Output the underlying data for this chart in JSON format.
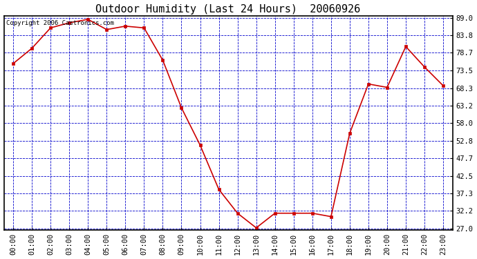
{
  "title": "Outdoor Humidity (Last 24 Hours)  20060926",
  "copyright_text": "Copyright 2006 Castronics.com",
  "x_labels": [
    "00:00",
    "01:00",
    "02:00",
    "03:00",
    "04:00",
    "05:00",
    "06:00",
    "07:00",
    "08:00",
    "09:00",
    "10:00",
    "11:00",
    "12:00",
    "13:00",
    "14:00",
    "15:00",
    "16:00",
    "17:00",
    "18:00",
    "19:00",
    "20:00",
    "21:00",
    "22:00",
    "23:00"
  ],
  "y_values": [
    75.5,
    80.0,
    86.0,
    87.5,
    88.5,
    85.5,
    86.5,
    86.0,
    76.5,
    62.5,
    51.5,
    38.5,
    31.5,
    27.2,
    31.5,
    31.5,
    31.5,
    30.5,
    55.0,
    69.5,
    68.5,
    80.5,
    74.5,
    69.0
  ],
  "line_color": "#cc0000",
  "marker_color": "#cc0000",
  "fig_bg_color": "#ffffff",
  "plot_bg_color": "#ffffff",
  "grid_color": "#0000cc",
  "border_color": "#000000",
  "y_ticks": [
    27.0,
    32.2,
    37.3,
    42.5,
    47.7,
    52.8,
    58.0,
    63.2,
    68.3,
    73.5,
    78.7,
    83.8,
    89.0
  ],
  "y_min": 27.0,
  "y_max": 89.0,
  "title_fontsize": 11,
  "tick_fontsize": 7.5,
  "copyright_fontsize": 6.5
}
